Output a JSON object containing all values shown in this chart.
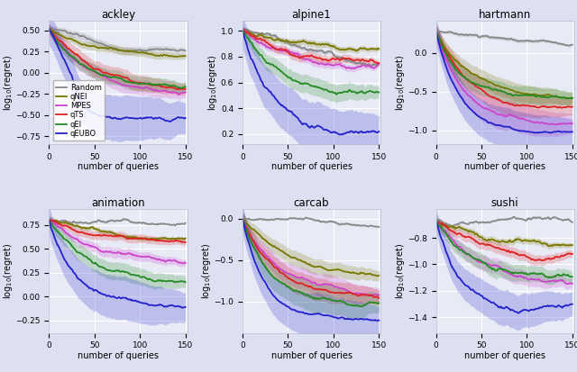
{
  "subplots": [
    {
      "title": "ackley",
      "ylabel": "log$_{10}$(regret)",
      "xlabel": "number of queries",
      "ylim": [
        -0.85,
        0.62
      ],
      "xlim": [
        0,
        152
      ],
      "yticks": [
        -0.75,
        -0.5,
        -0.25,
        0.0,
        0.25,
        0.5
      ],
      "legend": true,
      "curves": {
        "Random": {
          "start": 0.52,
          "end": 0.09,
          "rate": 1.5,
          "color": "#888888",
          "std_scale": 0.06
        },
        "qNEI": {
          "start": 0.52,
          "end": 0.09,
          "rate": 1.8,
          "color": "#777700",
          "std_scale": 0.06
        },
        "MPES": {
          "start": 0.52,
          "end": -0.24,
          "rate": 3.0,
          "color": "#cc44cc",
          "std_scale": 0.07
        },
        "qTS": {
          "start": 0.52,
          "end": -0.2,
          "rate": 2.5,
          "color": "#dd2222",
          "std_scale": 0.08
        },
        "qEI": {
          "start": 0.52,
          "end": -0.22,
          "rate": 3.5,
          "color": "#228B22",
          "std_scale": 0.07
        },
        "qEUBO": {
          "start": 0.52,
          "end": -0.58,
          "rate": 10.0,
          "color": "#2222cc",
          "std_scale": 0.15,
          "drop_at": 25
        }
      }
    },
    {
      "title": "alpine1",
      "ylabel": "log$_{10}$(regret)",
      "xlabel": "number of queries",
      "ylim": [
        0.12,
        1.08
      ],
      "xlim": [
        0,
        152
      ],
      "yticks": [
        0.2,
        0.4,
        0.6,
        0.8,
        1.0
      ],
      "legend": false,
      "curves": {
        "Random": {
          "start": 1.01,
          "end": 0.81,
          "rate": 2.0,
          "color": "#888888",
          "std_scale": 0.04
        },
        "qNEI": {
          "start": 1.01,
          "end": 0.77,
          "rate": 2.5,
          "color": "#777700",
          "std_scale": 0.05
        },
        "MPES": {
          "start": 1.01,
          "end": 0.72,
          "rate": 3.0,
          "color": "#cc44cc",
          "std_scale": 0.05
        },
        "qTS": {
          "start": 1.01,
          "end": 0.73,
          "rate": 3.0,
          "color": "#dd2222",
          "std_scale": 0.06
        },
        "qEI": {
          "start": 1.01,
          "end": 0.52,
          "rate": 4.0,
          "color": "#228B22",
          "std_scale": 0.08
        },
        "qEUBO": {
          "start": 1.01,
          "end": 0.2,
          "rate": 5.0,
          "color": "#2222cc",
          "std_scale": 0.14
        }
      }
    },
    {
      "title": "hartmann",
      "ylabel": "log$_{10}$(regret)",
      "xlabel": "number of queries",
      "ylim": [
        -1.18,
        0.42
      ],
      "xlim": [
        0,
        152
      ],
      "yticks": [
        -1.0,
        -0.5,
        0.0
      ],
      "legend": false,
      "curves": {
        "Random": {
          "start": 0.28,
          "end": -0.02,
          "rate": 1.5,
          "color": "#888888",
          "std_scale": 0.04
        },
        "qNEI": {
          "start": 0.28,
          "end": -0.6,
          "rate": 4.0,
          "color": "#777700",
          "std_scale": 0.08
        },
        "MPES": {
          "start": 0.28,
          "end": -0.88,
          "rate": 5.0,
          "color": "#cc44cc",
          "std_scale": 0.1
        },
        "qTS": {
          "start": 0.28,
          "end": -0.75,
          "rate": 4.5,
          "color": "#dd2222",
          "std_scale": 0.09
        },
        "qEI": {
          "start": 0.28,
          "end": -0.65,
          "rate": 5.0,
          "color": "#228B22",
          "std_scale": 0.08
        },
        "qEUBO": {
          "start": 0.28,
          "end": -1.0,
          "rate": 6.0,
          "color": "#2222cc",
          "std_scale": 0.12
        }
      }
    },
    {
      "title": "animation",
      "ylabel": "log$_{10}$(regret)",
      "xlabel": "number of queries",
      "ylim": [
        -0.38,
        0.92
      ],
      "xlim": [
        0,
        152
      ],
      "yticks": [
        -0.25,
        0.0,
        0.25,
        0.5,
        0.75
      ],
      "legend": false,
      "curves": {
        "Random": {
          "start": 0.8,
          "end": 0.68,
          "rate": 1.5,
          "color": "#888888",
          "std_scale": 0.03
        },
        "qNEI": {
          "start": 0.8,
          "end": 0.57,
          "rate": 2.0,
          "color": "#777700",
          "std_scale": 0.05
        },
        "MPES": {
          "start": 0.8,
          "end": 0.4,
          "rate": 2.5,
          "color": "#cc44cc",
          "std_scale": 0.07
        },
        "qTS": {
          "start": 0.8,
          "end": 0.52,
          "rate": 2.0,
          "color": "#dd2222",
          "std_scale": 0.08
        },
        "qEI": {
          "start": 0.8,
          "end": 0.22,
          "rate": 3.5,
          "color": "#228B22",
          "std_scale": 0.09
        },
        "qEUBO": {
          "start": 0.8,
          "end": -0.18,
          "rate": 5.0,
          "color": "#2222cc",
          "std_scale": 0.14
        }
      }
    },
    {
      "title": "carcab",
      "ylabel": "log$_{10}$(regret)",
      "xlabel": "number of queries",
      "ylim": [
        -1.38,
        0.12
      ],
      "xlim": [
        0,
        152
      ],
      "yticks": [
        -1.0,
        -0.5,
        0.0
      ],
      "legend": false,
      "curves": {
        "Random": {
          "start": 0.0,
          "end": -0.15,
          "rate": 1.5,
          "color": "#888888",
          "std_scale": 0.03
        },
        "qNEI": {
          "start": 0.0,
          "end": -0.68,
          "rate": 3.0,
          "color": "#777700",
          "std_scale": 0.08
        },
        "MPES": {
          "start": 0.0,
          "end": -0.88,
          "rate": 4.0,
          "color": "#cc44cc",
          "std_scale": 0.09
        },
        "qTS": {
          "start": 0.0,
          "end": -0.92,
          "rate": 4.0,
          "color": "#dd2222",
          "std_scale": 0.09
        },
        "qEI": {
          "start": 0.0,
          "end": -1.08,
          "rate": 5.0,
          "color": "#228B22",
          "std_scale": 0.1
        },
        "qEUBO": {
          "start": 0.0,
          "end": -1.22,
          "rate": 6.0,
          "color": "#2222cc",
          "std_scale": 0.13
        }
      }
    },
    {
      "title": "sushi",
      "ylabel": "log$_{10}$(regret)",
      "xlabel": "number of queries",
      "ylim": [
        -1.52,
        -0.58
      ],
      "xlim": [
        0,
        152
      ],
      "yticks": [
        -1.4,
        -1.2,
        -1.0,
        -0.8
      ],
      "legend": false,
      "curves": {
        "Random": {
          "start": -0.67,
          "end": -0.77,
          "rate": 1.5,
          "color": "#888888",
          "std_scale": 0.02
        },
        "qNEI": {
          "start": -0.67,
          "end": -0.92,
          "rate": 2.5,
          "color": "#777700",
          "std_scale": 0.05
        },
        "MPES": {
          "start": -0.67,
          "end": -1.12,
          "rate": 3.5,
          "color": "#cc44cc",
          "std_scale": 0.07
        },
        "qTS": {
          "start": -0.67,
          "end": -1.02,
          "rate": 3.0,
          "color": "#dd2222",
          "std_scale": 0.06
        },
        "qEI": {
          "start": -0.67,
          "end": -1.18,
          "rate": 4.0,
          "color": "#228B22",
          "std_scale": 0.07
        },
        "qEUBO": {
          "start": -0.67,
          "end": -1.38,
          "rate": 5.0,
          "color": "#2222cc",
          "std_scale": 0.11
        }
      }
    }
  ],
  "legend_order": [
    "Random",
    "qNEI",
    "MPES",
    "qTS",
    "qEI",
    "qEUBO"
  ],
  "legend_colors": {
    "Random": "#888888",
    "qNEI": "#777700",
    "MPES": "#cc44cc",
    "qTS": "#dd2222",
    "qEI": "#228B22",
    "qEUBO": "#2222cc"
  },
  "axes_bg": "#e8eaf6",
  "fig_bg": "#dde0f0",
  "n_points": 151
}
